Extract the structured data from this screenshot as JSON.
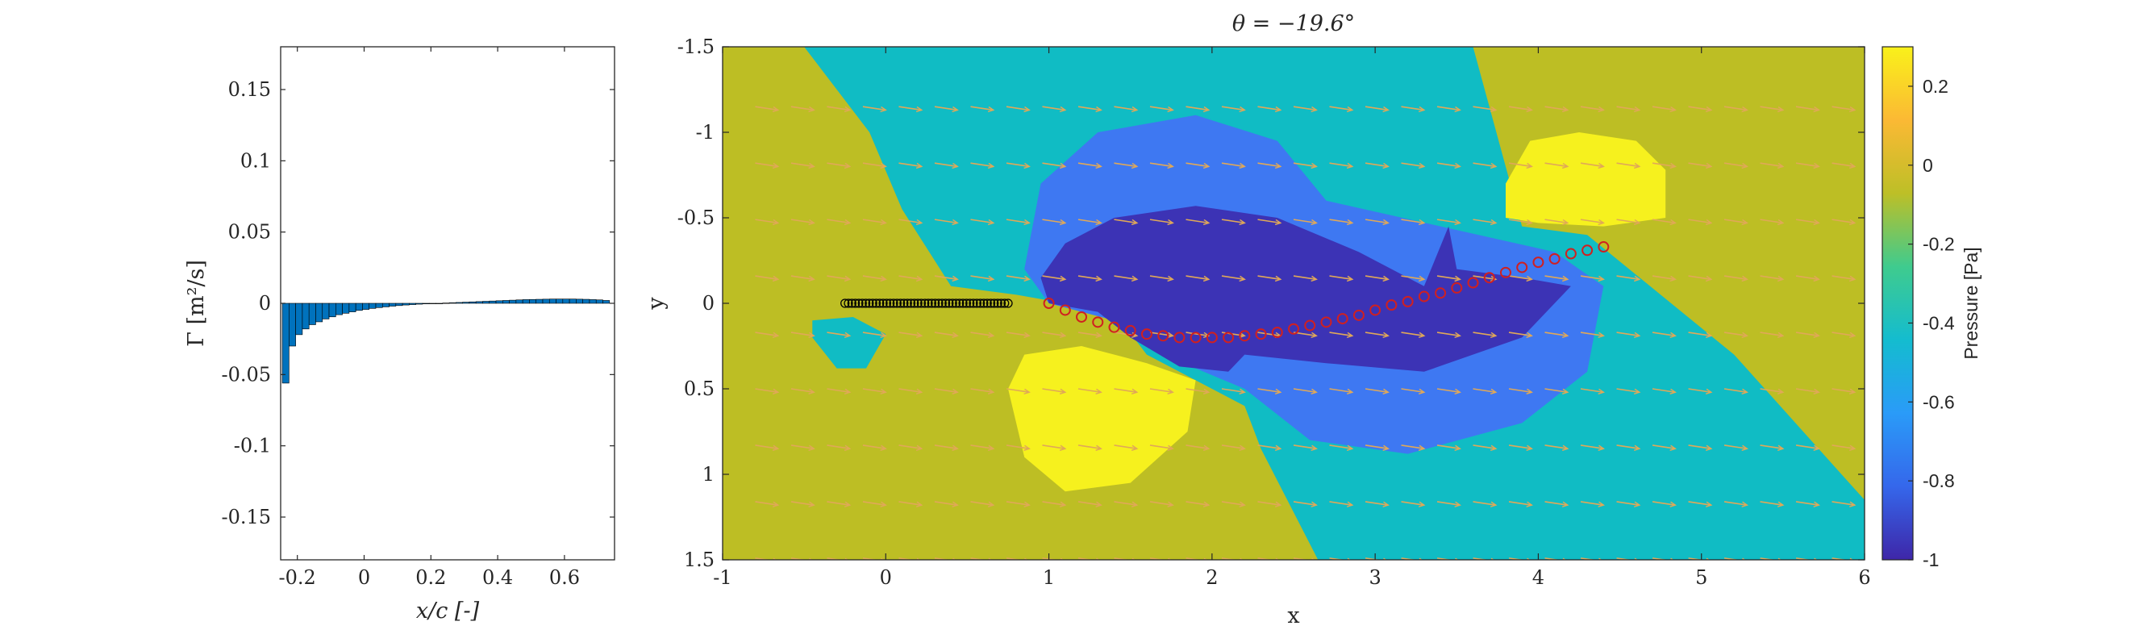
{
  "chart_data": [
    {
      "type": "bar",
      "title": "",
      "xlabel": "x/c [-]",
      "ylabel": "Γ [m²/s]",
      "xlim": [
        -0.25,
        0.75
      ],
      "ylim": [
        -0.18,
        0.18
      ],
      "xticks": [
        "-0.2",
        "0",
        "0.2",
        "0.4",
        "0.6"
      ],
      "yticks": [
        "0.15",
        "0.1",
        "0.05",
        "0",
        "-0.05",
        "-0.1",
        "-0.15"
      ],
      "bar_color": "#0072BD",
      "x": [
        -0.235,
        -0.215,
        -0.195,
        -0.175,
        -0.155,
        -0.135,
        -0.115,
        -0.095,
        -0.075,
        -0.055,
        -0.035,
        -0.015,
        0.005,
        0.025,
        0.045,
        0.065,
        0.085,
        0.105,
        0.125,
        0.145,
        0.165,
        0.185,
        0.205,
        0.225,
        0.245,
        0.265,
        0.285,
        0.305,
        0.325,
        0.345,
        0.365,
        0.385,
        0.405,
        0.425,
        0.445,
        0.465,
        0.485,
        0.505,
        0.525,
        0.545,
        0.565,
        0.585,
        0.605,
        0.625,
        0.645,
        0.665,
        0.685,
        0.705,
        0.725
      ],
      "values": [
        -0.056,
        -0.03,
        -0.022,
        -0.018,
        -0.015,
        -0.013,
        -0.011,
        -0.0095,
        -0.008,
        -0.007,
        -0.006,
        -0.005,
        -0.0043,
        -0.0036,
        -0.003,
        -0.0025,
        -0.002,
        -0.0016,
        -0.0012,
        -0.0009,
        -0.0006,
        -0.0004,
        -0.0002,
        0.0,
        0.0002,
        0.0004,
        0.0006,
        0.0008,
        0.001,
        0.0012,
        0.0014,
        0.0016,
        0.0018,
        0.002,
        0.0022,
        0.0024,
        0.0026,
        0.0027,
        0.0028,
        0.0029,
        0.003,
        0.003,
        0.003,
        0.003,
        0.0029,
        0.0028,
        0.0026,
        0.0024,
        0.002
      ]
    },
    {
      "type": "heatmap",
      "title": "θ = −19.6°",
      "xlabel": "x",
      "ylabel": "y",
      "xlim": [
        -1,
        6
      ],
      "ylim": [
        -1.5,
        1.5
      ],
      "y_reversed": true,
      "xticks": [
        "-1",
        "0",
        "1",
        "2",
        "3",
        "4",
        "5",
        "6"
      ],
      "yticks": [
        "-1.5",
        "-1",
        "-0.5",
        "0",
        "0.5",
        "1",
        "1.5"
      ],
      "colorbar": {
        "label": "Pressure [Pa]",
        "range": [
          -1,
          0.3
        ],
        "ticks": [
          "0.2",
          "0",
          "-0.2",
          "-0.4",
          "-0.6",
          "-0.8",
          "-1"
        ],
        "colors": [
          "#3E26A8",
          "#3567EB",
          "#2A9BF8",
          "#14BCCF",
          "#3FCB8E",
          "#BDBF27",
          "#FBB934",
          "#F9F11A"
        ]
      },
      "levels": {
        "p_0": "#BDBE24",
        "p_neg04": "#10BCC4",
        "p_neg07": "#3E78F2",
        "p_neg09": "#3C33B5",
        "p_pos02": "#F6F11E"
      },
      "regions": [
        {
          "level": "p_neg04",
          "points": [
            [
              -0.5,
              -1.5
            ],
            [
              3.6,
              -1.5
            ],
            [
              3.9,
              -0.45
            ],
            [
              4.3,
              -0.4
            ],
            [
              5.2,
              0.3
            ],
            [
              6,
              1.15
            ],
            [
              6,
              1.5
            ],
            [
              2.65,
              1.5
            ],
            [
              2.3,
              0.85
            ],
            [
              2.2,
              0.6
            ],
            [
              1.6,
              0.3
            ],
            [
              1.4,
              0.05
            ],
            [
              0.8,
              -0.05
            ],
            [
              0.4,
              -0.1
            ],
            [
              0.1,
              -0.55
            ],
            [
              -0.1,
              -1.0
            ]
          ]
        },
        {
          "level": "p_neg04",
          "points": [
            [
              -0.45,
              0.1
            ],
            [
              -0.2,
              0.08
            ],
            [
              0.0,
              0.18
            ],
            [
              -0.12,
              0.38
            ],
            [
              -0.3,
              0.38
            ],
            [
              -0.45,
              0.2
            ]
          ]
        },
        {
          "level": "p_neg07",
          "points": [
            [
              0.85,
              -0.2
            ],
            [
              0.95,
              -0.7
            ],
            [
              1.3,
              -1.0
            ],
            [
              1.9,
              -1.1
            ],
            [
              2.4,
              -0.95
            ],
            [
              2.7,
              -0.6
            ],
            [
              3.4,
              -0.45
            ],
            [
              4.1,
              -0.3
            ],
            [
              4.4,
              -0.1
            ],
            [
              4.3,
              0.4
            ],
            [
              3.9,
              0.7
            ],
            [
              3.2,
              0.88
            ],
            [
              2.6,
              0.8
            ],
            [
              2.2,
              0.5
            ],
            [
              1.7,
              0.3
            ],
            [
              1.4,
              0.1
            ],
            [
              1.0,
              0.0
            ]
          ]
        },
        {
          "level": "p_neg09",
          "points": [
            [
              0.95,
              -0.15
            ],
            [
              1.1,
              -0.35
            ],
            [
              1.4,
              -0.5
            ],
            [
              1.9,
              -0.57
            ],
            [
              2.4,
              -0.5
            ],
            [
              2.9,
              -0.3
            ],
            [
              3.3,
              -0.1
            ],
            [
              3.45,
              -0.45
            ],
            [
              3.5,
              -0.2
            ],
            [
              3.9,
              -0.15
            ],
            [
              4.2,
              -0.1
            ],
            [
              3.9,
              0.2
            ],
            [
              3.3,
              0.4
            ],
            [
              2.7,
              0.35
            ],
            [
              2.2,
              0.3
            ],
            [
              2.1,
              0.4
            ],
            [
              1.8,
              0.37
            ],
            [
              1.5,
              0.2
            ],
            [
              1.3,
              0.05
            ],
            [
              1.0,
              0.0
            ]
          ]
        },
        {
          "level": "p_pos02",
          "points": [
            [
              0.75,
              0.5
            ],
            [
              0.85,
              0.3
            ],
            [
              1.2,
              0.25
            ],
            [
              1.6,
              0.35
            ],
            [
              1.9,
              0.45
            ],
            [
              1.85,
              0.75
            ],
            [
              1.5,
              1.05
            ],
            [
              1.1,
              1.1
            ],
            [
              0.85,
              0.9
            ]
          ]
        },
        {
          "level": "p_pos02",
          "points": [
            [
              3.8,
              -0.5
            ],
            [
              3.8,
              -0.7
            ],
            [
              3.95,
              -0.95
            ],
            [
              4.25,
              -1.0
            ],
            [
              4.6,
              -0.95
            ],
            [
              4.78,
              -0.78
            ],
            [
              4.78,
              -0.5
            ],
            [
              4.4,
              -0.45
            ],
            [
              4.0,
              -0.47
            ]
          ]
        }
      ],
      "airfoil_markers": {
        "x_start": -0.25,
        "x_end": 0.75,
        "y": 0.0,
        "count": 48,
        "color": "#000000"
      },
      "wake_markers": {
        "color": "#D02020",
        "points": [
          [
            1.0,
            0.0
          ],
          [
            1.1,
            0.04
          ],
          [
            1.2,
            0.08
          ],
          [
            1.3,
            0.11
          ],
          [
            1.4,
            0.14
          ],
          [
            1.5,
            0.16
          ],
          [
            1.6,
            0.18
          ],
          [
            1.7,
            0.19
          ],
          [
            1.8,
            0.2
          ],
          [
            1.9,
            0.2
          ],
          [
            2.0,
            0.2
          ],
          [
            2.1,
            0.2
          ],
          [
            2.2,
            0.19
          ],
          [
            2.3,
            0.18
          ],
          [
            2.4,
            0.17
          ],
          [
            2.5,
            0.15
          ],
          [
            2.6,
            0.13
          ],
          [
            2.7,
            0.11
          ],
          [
            2.8,
            0.09
          ],
          [
            2.9,
            0.07
          ],
          [
            3.0,
            0.04
          ],
          [
            3.1,
            0.01
          ],
          [
            3.2,
            -0.01
          ],
          [
            3.3,
            -0.04
          ],
          [
            3.4,
            -0.06
          ],
          [
            3.5,
            -0.09
          ],
          [
            3.6,
            -0.12
          ],
          [
            3.7,
            -0.15
          ],
          [
            3.8,
            -0.18
          ],
          [
            3.9,
            -0.21
          ],
          [
            4.0,
            -0.24
          ],
          [
            4.1,
            -0.26
          ],
          [
            4.2,
            -0.29
          ],
          [
            4.3,
            -0.31
          ],
          [
            4.4,
            -0.33
          ]
        ]
      },
      "quiver": {
        "color": "#E0A858",
        "rows_y": [
          -1.15,
          -0.82,
          -0.49,
          -0.16,
          0.17,
          0.5,
          0.83,
          1.16,
          1.49
        ],
        "x_from": -0.8,
        "x_to": 5.9,
        "x_step": 0.22,
        "dx": 0.14,
        "dy": 0.02
      }
    }
  ]
}
